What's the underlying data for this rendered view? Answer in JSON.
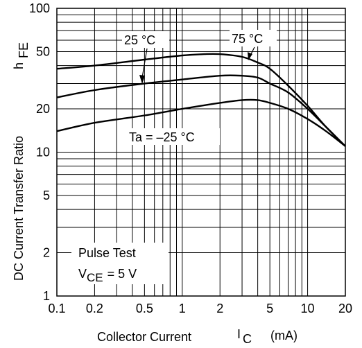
{
  "chart_data": {
    "type": "line",
    "xlabel": "Collector Current",
    "xlabel_symbol": "I",
    "xlabel_sub": "C",
    "xlabel_unit": "(mA)",
    "ylabel": "DC Current Transfer Ratio",
    "ylabel_symbol": "h",
    "ylabel_sub": "FE",
    "x_scale": "log",
    "y_scale": "log",
    "xlim": [
      0.1,
      20
    ],
    "ylim": [
      1,
      100
    ],
    "grid": true,
    "x_ticks": [
      {
        "v": 0.1,
        "t": "0.1"
      },
      {
        "v": 0.2,
        "t": "0.2"
      },
      {
        "v": 0.5,
        "t": "0.5"
      },
      {
        "v": 1,
        "t": "1"
      },
      {
        "v": 2,
        "t": "2"
      },
      {
        "v": 5,
        "t": "5"
      },
      {
        "v": 10,
        "t": "10"
      },
      {
        "v": 20,
        "t": "20"
      }
    ],
    "y_ticks": [
      {
        "v": 1,
        "t": "1"
      },
      {
        "v": 2,
        "t": "2"
      },
      {
        "v": 5,
        "t": "5"
      },
      {
        "v": 10,
        "t": "10"
      },
      {
        "v": 20,
        "t": "20"
      },
      {
        "v": 50,
        "t": "50"
      },
      {
        "v": 100,
        "t": "100"
      }
    ],
    "series": [
      {
        "name": "75 °C",
        "x": [
          0.1,
          0.2,
          0.5,
          1,
          1.5,
          2,
          3,
          4,
          5,
          7,
          10,
          14,
          20
        ],
        "y": [
          38,
          40,
          44,
          47,
          48,
          48,
          46,
          42,
          38,
          29,
          21,
          15,
          11
        ]
      },
      {
        "name": "25 °C",
        "x": [
          0.1,
          0.2,
          0.5,
          1,
          2,
          3,
          4,
          5,
          7,
          10,
          14,
          20
        ],
        "y": [
          24,
          27,
          30,
          32,
          34,
          34,
          33,
          30,
          26,
          20,
          15,
          11
        ]
      },
      {
        "name": "Ta = –25 °C",
        "x": [
          0.1,
          0.2,
          0.5,
          1,
          2,
          3,
          4,
          5,
          7,
          10,
          14,
          20
        ],
        "y": [
          14,
          16,
          18,
          20,
          22,
          23,
          23,
          22,
          20,
          17,
          14,
          11
        ]
      }
    ],
    "annotations": {
      "label_25c": "25 °C",
      "label_75c": "75 °C",
      "label_ta": "Ta = –25 °C",
      "pulse_test": "Pulse Test",
      "vce_symbol": "V",
      "vce_sub": "CE",
      "vce_value": "= 5 V"
    }
  }
}
